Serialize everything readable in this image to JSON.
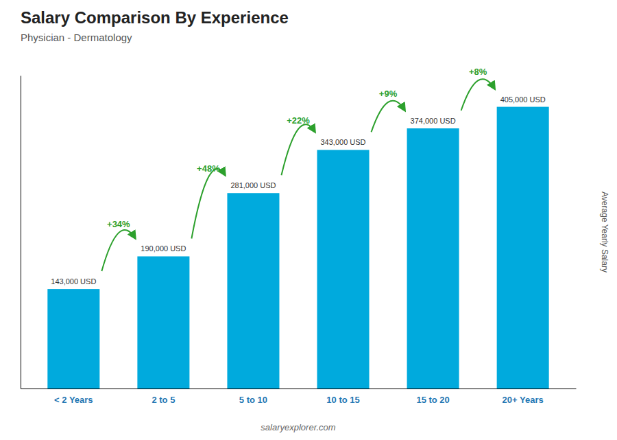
{
  "chart_data": {
    "type": "bar",
    "title": "Salary Comparison By Experience",
    "subtitle": "Physician - Dermatology",
    "categories": [
      "< 2 Years",
      "2 to 5",
      "5 to 10",
      "10 to 15",
      "15 to 20",
      "20+ Years"
    ],
    "values": [
      143000,
      190000,
      281000,
      343000,
      374000,
      405000
    ],
    "value_labels": [
      "143,000 USD",
      "190,000 USD",
      "281,000 USD",
      "343,000 USD",
      "374,000 USD",
      "405,000 USD"
    ],
    "data_labels": true,
    "annotations": [
      "+34%",
      "+48%",
      "+22%",
      "+9%",
      "+8%"
    ],
    "ylabel": "Average Yearly Salary",
    "footer": "salaryexplorer.com",
    "color": "#00aadd",
    "ylim": [
      0,
      450000
    ],
    "grid": false,
    "tick_labels": "x"
  }
}
